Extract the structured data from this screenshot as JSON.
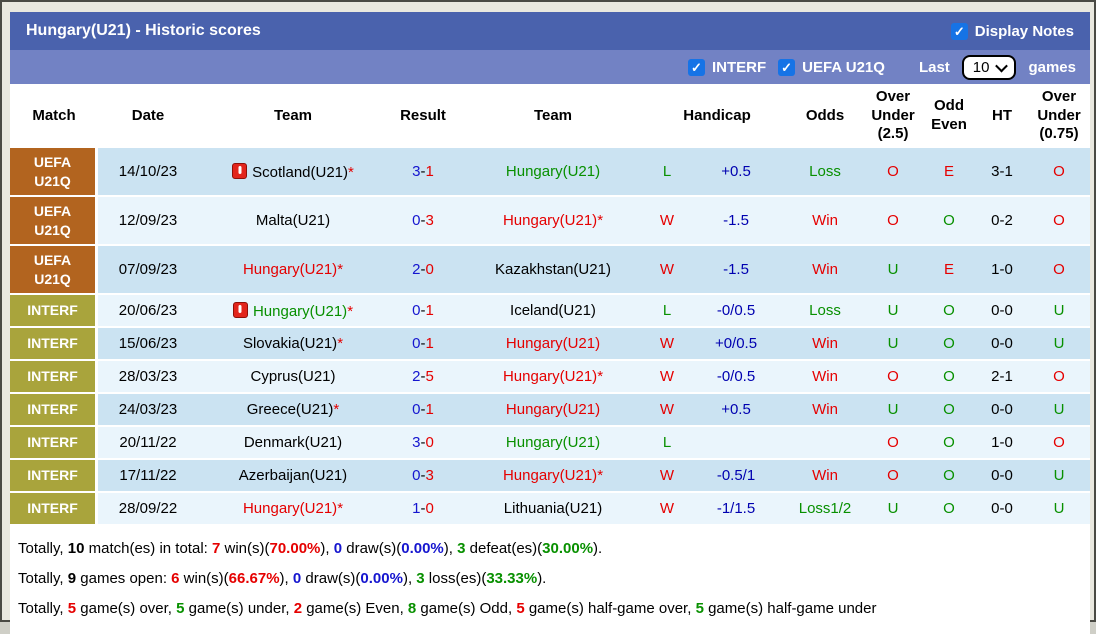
{
  "header": {
    "title": "Hungary(U21) - Historic scores",
    "display_notes": "Display Notes"
  },
  "filters": {
    "interf": "INTERF",
    "uefa": "UEFA U21Q",
    "last": "Last",
    "games": "games",
    "last_value": "10"
  },
  "colors": {
    "titlebar_bg": "#4a62ad",
    "filterbar_bg": "#7282c4",
    "checkbox_blue": "#1673e6",
    "uefa_bg": "#b2641f",
    "interf_bg": "#a9a43c",
    "row_odd_bg": "#cbe3f2",
    "row_even_bg": "#eaf5fc",
    "win_red": "#e50000",
    "loss_green": "#089000",
    "handicap_navy": "#0000b0",
    "score_blue": "#1515cf"
  },
  "table": {
    "columns": [
      {
        "label": "Match",
        "colspan": 1
      },
      {
        "label": "Date",
        "colspan": 1
      },
      {
        "label": "Team",
        "colspan": 1
      },
      {
        "label": "Result",
        "colspan": 1
      },
      {
        "label": "Team",
        "colspan": 1
      },
      {
        "label": "Handicap",
        "colspan": 2
      },
      {
        "label": "Odds",
        "colspan": 1
      },
      {
        "label": "Over\nUnder\n(2.5)",
        "colspan": 1
      },
      {
        "label": "Odd\nEven",
        "colspan": 1
      },
      {
        "label": "HT",
        "colspan": 1
      },
      {
        "label": "Over\nUnder\n(0.75)",
        "colspan": 1
      }
    ],
    "rows": [
      {
        "league": "UEFA\nU21Q",
        "league_type": "uefa",
        "date": "14/10/23",
        "home": {
          "icon": true,
          "name": "Scotland(U21)",
          "star": true,
          "color": "black"
        },
        "score": {
          "home": "3",
          "away": "1"
        },
        "away": {
          "icon": false,
          "name": "Hungary(U21)",
          "star": false,
          "color": "green"
        },
        "hcp_result": {
          "text": "L",
          "color": "green"
        },
        "handicap": "+0.5",
        "odds": {
          "text": "Loss",
          "color": "green"
        },
        "ou25": {
          "text": "O",
          "color": "red"
        },
        "odd_even": {
          "text": "E",
          "color": "red"
        },
        "ht": "3-1",
        "ou075": {
          "text": "O",
          "color": "red"
        }
      },
      {
        "league": "UEFA\nU21Q",
        "league_type": "uefa",
        "date": "12/09/23",
        "home": {
          "icon": false,
          "name": "Malta(U21)",
          "star": false,
          "color": "black"
        },
        "score": {
          "home": "0",
          "away": "3"
        },
        "away": {
          "icon": false,
          "name": "Hungary(U21)",
          "star": true,
          "color": "red"
        },
        "hcp_result": {
          "text": "W",
          "color": "red"
        },
        "handicap": "-1.5",
        "odds": {
          "text": "Win",
          "color": "red"
        },
        "ou25": {
          "text": "O",
          "color": "red"
        },
        "odd_even": {
          "text": "O",
          "color": "green"
        },
        "ht": "0-2",
        "ou075": {
          "text": "O",
          "color": "red"
        }
      },
      {
        "league": "UEFA\nU21Q",
        "league_type": "uefa",
        "date": "07/09/23",
        "home": {
          "icon": false,
          "name": "Hungary(U21)",
          "star": true,
          "color": "red"
        },
        "score": {
          "home": "2",
          "away": "0"
        },
        "away": {
          "icon": false,
          "name": "Kazakhstan(U21)",
          "star": false,
          "color": "black"
        },
        "hcp_result": {
          "text": "W",
          "color": "red"
        },
        "handicap": "-1.5",
        "odds": {
          "text": "Win",
          "color": "red"
        },
        "ou25": {
          "text": "U",
          "color": "green"
        },
        "odd_even": {
          "text": "E",
          "color": "red"
        },
        "ht": "1-0",
        "ou075": {
          "text": "O",
          "color": "red"
        }
      },
      {
        "league": "INTERF",
        "league_type": "interf",
        "date": "20/06/23",
        "home": {
          "icon": true,
          "name": "Hungary(U21)",
          "star": true,
          "color": "green"
        },
        "score": {
          "home": "0",
          "away": "1"
        },
        "away": {
          "icon": false,
          "name": "Iceland(U21)",
          "star": false,
          "color": "black"
        },
        "hcp_result": {
          "text": "L",
          "color": "green"
        },
        "handicap": "-0/0.5",
        "odds": {
          "text": "Loss",
          "color": "green"
        },
        "ou25": {
          "text": "U",
          "color": "green"
        },
        "odd_even": {
          "text": "O",
          "color": "green"
        },
        "ht": "0-0",
        "ou075": {
          "text": "U",
          "color": "green"
        }
      },
      {
        "league": "INTERF",
        "league_type": "interf",
        "date": "15/06/23",
        "home": {
          "icon": false,
          "name": "Slovakia(U21)",
          "star": true,
          "color": "black"
        },
        "score": {
          "home": "0",
          "away": "1"
        },
        "away": {
          "icon": false,
          "name": "Hungary(U21)",
          "star": false,
          "color": "red"
        },
        "hcp_result": {
          "text": "W",
          "color": "red"
        },
        "handicap": "+0/0.5",
        "odds": {
          "text": "Win",
          "color": "red"
        },
        "ou25": {
          "text": "U",
          "color": "green"
        },
        "odd_even": {
          "text": "O",
          "color": "green"
        },
        "ht": "0-0",
        "ou075": {
          "text": "U",
          "color": "green"
        }
      },
      {
        "league": "INTERF",
        "league_type": "interf",
        "date": "28/03/23",
        "home": {
          "icon": false,
          "name": "Cyprus(U21)",
          "star": false,
          "color": "black"
        },
        "score": {
          "home": "2",
          "away": "5"
        },
        "away": {
          "icon": false,
          "name": "Hungary(U21)",
          "star": true,
          "color": "red"
        },
        "hcp_result": {
          "text": "W",
          "color": "red"
        },
        "handicap": "-0/0.5",
        "odds": {
          "text": "Win",
          "color": "red"
        },
        "ou25": {
          "text": "O",
          "color": "red"
        },
        "odd_even": {
          "text": "O",
          "color": "green"
        },
        "ht": "2-1",
        "ou075": {
          "text": "O",
          "color": "red"
        }
      },
      {
        "league": "INTERF",
        "league_type": "interf",
        "date": "24/03/23",
        "home": {
          "icon": false,
          "name": "Greece(U21)",
          "star": true,
          "color": "black"
        },
        "score": {
          "home": "0",
          "away": "1"
        },
        "away": {
          "icon": false,
          "name": "Hungary(U21)",
          "star": false,
          "color": "red"
        },
        "hcp_result": {
          "text": "W",
          "color": "red"
        },
        "handicap": "+0.5",
        "odds": {
          "text": "Win",
          "color": "red"
        },
        "ou25": {
          "text": "U",
          "color": "green"
        },
        "odd_even": {
          "text": "O",
          "color": "green"
        },
        "ht": "0-0",
        "ou075": {
          "text": "U",
          "color": "green"
        }
      },
      {
        "league": "INTERF",
        "league_type": "interf",
        "date": "20/11/22",
        "home": {
          "icon": false,
          "name": "Denmark(U21)",
          "star": false,
          "color": "black"
        },
        "score": {
          "home": "3",
          "away": "0"
        },
        "away": {
          "icon": false,
          "name": "Hungary(U21)",
          "star": false,
          "color": "green"
        },
        "hcp_result": {
          "text": "L",
          "color": "green"
        },
        "handicap": "",
        "odds": {
          "text": "",
          "color": "black"
        },
        "ou25": {
          "text": "O",
          "color": "red"
        },
        "odd_even": {
          "text": "O",
          "color": "green"
        },
        "ht": "1-0",
        "ou075": {
          "text": "O",
          "color": "red"
        }
      },
      {
        "league": "INTERF",
        "league_type": "interf",
        "date": "17/11/22",
        "home": {
          "icon": false,
          "name": "Azerbaijan(U21)",
          "star": false,
          "color": "black"
        },
        "score": {
          "home": "0",
          "away": "3"
        },
        "away": {
          "icon": false,
          "name": "Hungary(U21)",
          "star": true,
          "color": "red"
        },
        "hcp_result": {
          "text": "W",
          "color": "red"
        },
        "handicap": "-0.5/1",
        "odds": {
          "text": "Win",
          "color": "red"
        },
        "ou25": {
          "text": "O",
          "color": "red"
        },
        "odd_even": {
          "text": "O",
          "color": "green"
        },
        "ht": "0-0",
        "ou075": {
          "text": "U",
          "color": "green"
        }
      },
      {
        "league": "INTERF",
        "league_type": "interf",
        "date": "28/09/22",
        "home": {
          "icon": false,
          "name": "Hungary(U21)",
          "star": true,
          "color": "red"
        },
        "score": {
          "home": "1",
          "away": "0"
        },
        "away": {
          "icon": false,
          "name": "Lithuania(U21)",
          "star": false,
          "color": "black"
        },
        "hcp_result": {
          "text": "W",
          "color": "red"
        },
        "handicap": "-1/1.5",
        "odds": {
          "text": "Loss1/2",
          "color": "green"
        },
        "ou25": {
          "text": "U",
          "color": "green"
        },
        "odd_even": {
          "text": "O",
          "color": "green"
        },
        "ht": "0-0",
        "ou075": {
          "text": "U",
          "color": "green"
        }
      }
    ]
  },
  "footer": {
    "lines": [
      [
        {
          "text": "Totally, ",
          "color": "black",
          "bold": false
        },
        {
          "text": "10",
          "color": "black",
          "bold": true
        },
        {
          "text": " match(es) in total: ",
          "color": "black",
          "bold": false
        },
        {
          "text": "7",
          "color": "red",
          "bold": true
        },
        {
          "text": " win(s)(",
          "color": "black",
          "bold": false
        },
        {
          "text": "70.00%",
          "color": "red",
          "bold": true
        },
        {
          "text": "), ",
          "color": "black",
          "bold": false
        },
        {
          "text": "0",
          "color": "blue",
          "bold": true
        },
        {
          "text": " draw(s)(",
          "color": "black",
          "bold": false
        },
        {
          "text": "0.00%",
          "color": "blue",
          "bold": true
        },
        {
          "text": "), ",
          "color": "black",
          "bold": false
        },
        {
          "text": "3",
          "color": "green",
          "bold": true
        },
        {
          "text": " defeat(es)(",
          "color": "black",
          "bold": false
        },
        {
          "text": "30.00%",
          "color": "green",
          "bold": true
        },
        {
          "text": ").",
          "color": "black",
          "bold": false
        }
      ],
      [
        {
          "text": "Totally, ",
          "color": "black",
          "bold": false
        },
        {
          "text": "9",
          "color": "black",
          "bold": true
        },
        {
          "text": " games open: ",
          "color": "black",
          "bold": false
        },
        {
          "text": "6",
          "color": "red",
          "bold": true
        },
        {
          "text": " win(s)(",
          "color": "black",
          "bold": false
        },
        {
          "text": "66.67%",
          "color": "red",
          "bold": true
        },
        {
          "text": "), ",
          "color": "black",
          "bold": false
        },
        {
          "text": "0",
          "color": "blue",
          "bold": true
        },
        {
          "text": " draw(s)(",
          "color": "black",
          "bold": false
        },
        {
          "text": "0.00%",
          "color": "blue",
          "bold": true
        },
        {
          "text": "), ",
          "color": "black",
          "bold": false
        },
        {
          "text": "3",
          "color": "green",
          "bold": true
        },
        {
          "text": " loss(es)(",
          "color": "black",
          "bold": false
        },
        {
          "text": "33.33%",
          "color": "green",
          "bold": true
        },
        {
          "text": ").",
          "color": "black",
          "bold": false
        }
      ],
      [
        {
          "text": "Totally, ",
          "color": "black",
          "bold": false
        },
        {
          "text": "5",
          "color": "red",
          "bold": true
        },
        {
          "text": " game(s) over, ",
          "color": "black",
          "bold": false
        },
        {
          "text": "5",
          "color": "green",
          "bold": true
        },
        {
          "text": " game(s) under, ",
          "color": "black",
          "bold": false
        },
        {
          "text": "2",
          "color": "red",
          "bold": true
        },
        {
          "text": " game(s) Even, ",
          "color": "black",
          "bold": false
        },
        {
          "text": "8",
          "color": "green",
          "bold": true
        },
        {
          "text": " game(s) Odd, ",
          "color": "black",
          "bold": false
        },
        {
          "text": "5",
          "color": "red",
          "bold": true
        },
        {
          "text": " game(s) half-game over, ",
          "color": "black",
          "bold": false
        },
        {
          "text": "5",
          "color": "green",
          "bold": true
        },
        {
          "text": " game(s) half-game under",
          "color": "black",
          "bold": false
        }
      ]
    ]
  }
}
